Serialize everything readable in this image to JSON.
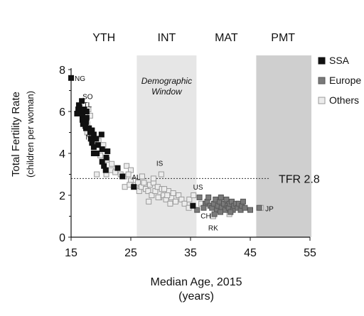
{
  "chart_data": {
    "type": "scatter",
    "xlabel": "Median Age, 2015",
    "xlabel_units": "(years)",
    "ylabel": "Total Fertility Rate",
    "ylabel_units": "(children per woman)",
    "xlim": [
      15,
      55
    ],
    "ylim": [
      0,
      8
    ],
    "x_ticks": [
      "15",
      "25",
      "35",
      "45",
      "55"
    ],
    "y_ticks": [
      "0",
      "2",
      "4",
      "6",
      "8"
    ],
    "grid": false,
    "legend_position": "top-right",
    "phases": [
      {
        "label": "YTH",
        "x_start": 15,
        "x_end": 26,
        "shaded": false
      },
      {
        "label": "INT",
        "x_start": 26,
        "x_end": 36,
        "shaded": true,
        "color": "#e6e6e6",
        "annotation": "Demographic Window"
      },
      {
        "label": "MAT",
        "x_start": 36,
        "x_end": 46,
        "shaded": false
      },
      {
        "label": "PMT",
        "x_start": 46,
        "x_end": 56,
        "shaded": true,
        "color": "#cfcfcf"
      }
    ],
    "reference_line": {
      "y": 2.8,
      "label": "TFR 2.8"
    },
    "series": [
      {
        "name": "SSA",
        "color": "#111111",
        "border": "#111111",
        "points": [
          [
            15.0,
            7.6
          ],
          [
            16.8,
            6.5
          ],
          [
            16.3,
            6.3
          ],
          [
            16.4,
            6.2
          ],
          [
            16.2,
            6.1
          ],
          [
            16.8,
            6.0
          ],
          [
            17.2,
            6.1
          ],
          [
            17.6,
            6.0
          ],
          [
            16.0,
            5.9
          ],
          [
            16.9,
            5.8
          ],
          [
            17.6,
            5.7
          ],
          [
            16.9,
            5.6
          ],
          [
            17.5,
            5.5
          ],
          [
            17.0,
            5.4
          ],
          [
            17.5,
            5.2
          ],
          [
            18.0,
            5.2
          ],
          [
            18.5,
            5.1
          ],
          [
            18.2,
            5.0
          ],
          [
            18.8,
            4.9
          ],
          [
            20.1,
            4.9
          ],
          [
            18.3,
            4.7
          ],
          [
            19.2,
            4.7
          ],
          [
            18.5,
            4.5
          ],
          [
            19.5,
            4.4
          ],
          [
            18.8,
            4.3
          ],
          [
            20.2,
            4.2
          ],
          [
            18.8,
            4.0
          ],
          [
            19.3,
            4.0
          ],
          [
            21.1,
            4.1
          ],
          [
            20.2,
            3.6
          ],
          [
            20.5,
            3.4
          ],
          [
            20.8,
            3.2
          ],
          [
            22.8,
            3.3
          ],
          [
            20.9,
            3.8
          ],
          [
            23.6,
            2.9
          ],
          [
            25.5,
            2.4
          ],
          [
            35.4,
            1.5
          ],
          [
            16.3,
            6.0
          ],
          [
            17.4,
            5.3
          ]
        ]
      },
      {
        "name": "Europe",
        "color": "#7a7a7a",
        "border": "#555555",
        "points": [
          [
            36.1,
            1.3
          ],
          [
            36.5,
            1.9
          ],
          [
            37.5,
            1.6
          ],
          [
            37.8,
            1.7
          ],
          [
            38.0,
            1.9
          ],
          [
            38.3,
            1.5
          ],
          [
            38.6,
            1.4
          ],
          [
            38.9,
            1.6
          ],
          [
            39.2,
            1.8
          ],
          [
            39.4,
            1.3
          ],
          [
            39.6,
            1.5
          ],
          [
            39.9,
            1.7
          ],
          [
            40.1,
            1.9
          ],
          [
            40.2,
            1.4
          ],
          [
            40.6,
            1.6
          ],
          [
            40.8,
            1.3
          ],
          [
            41.0,
            1.8
          ],
          [
            41.2,
            1.5
          ],
          [
            41.4,
            1.4
          ],
          [
            41.6,
            1.6
          ],
          [
            41.9,
            1.7
          ],
          [
            42.1,
            1.3
          ],
          [
            42.3,
            1.5
          ],
          [
            42.6,
            1.6
          ],
          [
            42.9,
            1.4
          ],
          [
            43.1,
            1.6
          ],
          [
            43.4,
            1.3
          ],
          [
            43.6,
            1.5
          ],
          [
            44.1,
            1.4
          ],
          [
            45.0,
            1.3
          ],
          [
            40.0,
            1.2
          ],
          [
            41.7,
            1.2
          ],
          [
            39.0,
            1.1
          ],
          [
            37.2,
            1.4
          ],
          [
            43.8,
            1.7
          ],
          [
            46.5,
            1.4
          ]
        ]
      },
      {
        "name": "Others",
        "color": "#ececec",
        "border": "#9a9a9a",
        "points": [
          [
            17.9,
            6.1
          ],
          [
            17.3,
            5.7
          ],
          [
            18.2,
            5.8
          ],
          [
            17.7,
            5.4
          ],
          [
            17.7,
            5.0
          ],
          [
            18.6,
            4.8
          ],
          [
            19.6,
            4.6
          ],
          [
            20.4,
            4.4
          ],
          [
            19.9,
            3.9
          ],
          [
            21.0,
            3.7
          ],
          [
            21.8,
            3.5
          ],
          [
            21.7,
            3.2
          ],
          [
            20.9,
            3.0
          ],
          [
            22.4,
            3.1
          ],
          [
            23.3,
            3.0
          ],
          [
            23.9,
            2.9
          ],
          [
            24.3,
            3.4
          ],
          [
            25.0,
            3.2
          ],
          [
            24.6,
            3.0
          ],
          [
            25.0,
            2.7
          ],
          [
            24.0,
            2.4
          ],
          [
            25.8,
            2.5
          ],
          [
            26.2,
            2.6
          ],
          [
            26.4,
            2.2
          ],
          [
            26.8,
            2.4
          ],
          [
            27.2,
            2.6
          ],
          [
            27.5,
            2.3
          ],
          [
            27.9,
            2.2
          ],
          [
            28.2,
            2.5
          ],
          [
            28.5,
            2.0
          ],
          [
            28.8,
            2.6
          ],
          [
            29.1,
            2.2
          ],
          [
            29.5,
            2.4
          ],
          [
            29.8,
            1.9
          ],
          [
            30.2,
            2.3
          ],
          [
            30.5,
            2.0
          ],
          [
            30.9,
            1.8
          ],
          [
            31.3,
            2.2
          ],
          [
            31.8,
            1.9
          ],
          [
            32.1,
            2.1
          ],
          [
            32.5,
            1.7
          ],
          [
            33.0,
            2.0
          ],
          [
            33.5,
            1.8
          ],
          [
            34.0,
            1.6
          ],
          [
            34.8,
            1.8
          ],
          [
            35.5,
            2.0
          ],
          [
            28.0,
            1.7
          ],
          [
            29.6,
            1.9
          ],
          [
            26.9,
            2.9
          ],
          [
            28.8,
            2.8
          ],
          [
            30.1,
            3.0
          ],
          [
            30.6,
            2.3
          ],
          [
            31.6,
            1.6
          ],
          [
            34.7,
            1.4
          ],
          [
            38.8,
            1.0
          ],
          [
            41.5,
            1.1
          ],
          [
            46.8,
            1.4
          ],
          [
            36.8,
            1.6
          ],
          [
            31.1,
            2.0
          ],
          [
            24.8,
            2.5
          ],
          [
            19.3,
            3.0
          ]
        ]
      }
    ],
    "point_labels": [
      {
        "text": "NG",
        "x": 15.0,
        "y": 7.6
      },
      {
        "text": "SO",
        "x": 16.8,
        "y": 6.5
      },
      {
        "text": "TL",
        "x": 17.2,
        "y": 6.1
      },
      {
        "text": "NI",
        "x": 18.0,
        "y": 5.2
      },
      {
        "text": "AL",
        "x": 25.5,
        "y": 2.4
      },
      {
        "text": "IS",
        "x": 30.1,
        "y": 3.0
      },
      {
        "text": "US",
        "x": 36.5,
        "y": 1.9
      },
      {
        "text": "CH",
        "x": 36.1,
        "y": 1.3
      },
      {
        "text": "RK",
        "x": 38.8,
        "y": 1.0
      },
      {
        "text": "JP",
        "x": 46.8,
        "y": 1.4
      }
    ]
  }
}
